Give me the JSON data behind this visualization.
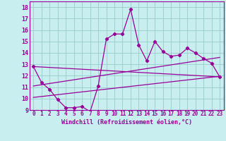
{
  "xlabel": "Windchill (Refroidissement éolien,°C)",
  "background_color": "#c8eef0",
  "line_color": "#990099",
  "grid_color": "#99cccc",
  "xlim": [
    -0.5,
    23.5
  ],
  "ylim": [
    9,
    18.5
  ],
  "xticks": [
    0,
    1,
    2,
    3,
    4,
    5,
    6,
    7,
    8,
    9,
    10,
    11,
    12,
    13,
    14,
    15,
    16,
    17,
    18,
    19,
    20,
    21,
    22,
    23
  ],
  "yticks": [
    9,
    10,
    11,
    12,
    13,
    14,
    15,
    16,
    17,
    18
  ],
  "jagged_x": [
    0,
    1,
    2,
    3,
    4,
    5,
    6,
    7,
    8,
    9,
    10,
    11,
    12,
    13,
    14,
    15,
    16,
    17,
    18,
    19,
    20,
    21,
    22,
    23
  ],
  "jagged_y": [
    12.8,
    11.4,
    10.8,
    9.9,
    9.2,
    9.2,
    9.3,
    8.85,
    11.1,
    15.2,
    15.65,
    15.65,
    17.8,
    14.7,
    13.3,
    15.0,
    14.1,
    13.7,
    13.8,
    14.4,
    14.0,
    13.5,
    13.1,
    11.9
  ],
  "line1_x": [
    0,
    23
  ],
  "line1_y": [
    12.8,
    11.9
  ],
  "line2_x": [
    0,
    23
  ],
  "line2_y": [
    11.1,
    13.6
  ],
  "line3_x": [
    0,
    23
  ],
  "line3_y": [
    10.1,
    11.95
  ]
}
